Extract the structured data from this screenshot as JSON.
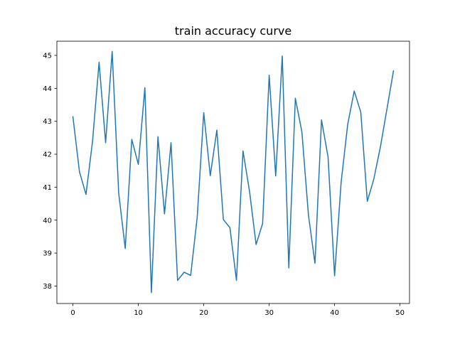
{
  "chart_data": {
    "type": "line",
    "title": "train accuracy curve",
    "xlabel": "",
    "ylabel": "",
    "xlim": [
      -2.45,
      51.45
    ],
    "ylim": [
      37.47,
      45.43
    ],
    "x_ticks": [
      0,
      10,
      20,
      30,
      40,
      50
    ],
    "y_ticks": [
      38,
      39,
      40,
      41,
      42,
      43,
      44,
      45
    ],
    "grid": false,
    "legend": "none",
    "series": [
      {
        "color": "#1f77b4",
        "x": [
          0,
          1,
          2,
          3,
          4,
          5,
          6,
          7,
          8,
          9,
          10,
          11,
          12,
          13,
          14,
          15,
          16,
          17,
          18,
          19,
          20,
          21,
          22,
          23,
          24,
          25,
          26,
          27,
          28,
          29,
          30,
          31,
          32,
          33,
          34,
          35,
          36,
          37,
          38,
          39,
          40,
          41,
          42,
          43,
          44,
          45,
          46,
          47,
          48,
          49
        ],
        "values": [
          43.14,
          41.47,
          40.78,
          42.39,
          44.79,
          42.35,
          45.12,
          40.82,
          39.14,
          42.45,
          41.69,
          44.02,
          37.8,
          42.53,
          40.19,
          42.35,
          38.17,
          38.42,
          38.32,
          40.09,
          43.26,
          41.35,
          42.73,
          40.02,
          39.77,
          38.17,
          42.1,
          40.87,
          39.26,
          39.9,
          44.4,
          41.34,
          44.98,
          38.55,
          43.7,
          42.68,
          40.16,
          38.69,
          43.04,
          41.92,
          38.31,
          41.15,
          42.9,
          43.92,
          43.28,
          40.57,
          41.25,
          42.22,
          43.37,
          44.53
        ]
      }
    ]
  }
}
